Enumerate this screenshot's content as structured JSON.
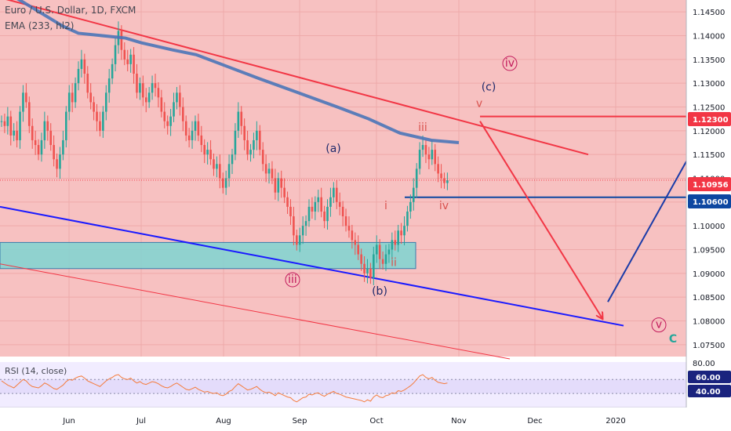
{
  "header": {
    "symbol_title": "Euro / U.S. Dollar, 1D, FXCM",
    "ema_label": "EMA (233, hl2)",
    "rsi_label": "RSI (14, close)"
  },
  "chart_data": {
    "type": "candlestick",
    "price_axis": {
      "ticks": [
        "1.14500",
        "1.14000",
        "1.13500",
        "1.13000",
        "1.12500",
        "1.12000",
        "1.11500",
        "1.11000",
        "1.10500",
        "1.10000",
        "1.09500",
        "1.09000",
        "1.08500",
        "1.08000",
        "1.07500"
      ],
      "range": [
        1.0725,
        1.1475
      ]
    },
    "time_axis": {
      "ticks": [
        "Jun",
        "Jul",
        "Aug",
        "Sep",
        "Oct",
        "Nov",
        "Dec",
        "2020"
      ]
    },
    "price_badges": [
      {
        "value": "1.12300",
        "color": "#f23645"
      },
      {
        "value": "1.10956",
        "color": "#f23645"
      },
      {
        "value": "1.10600",
        "color": "#0d47a1"
      }
    ],
    "rsi": {
      "ticks": [
        "80.00",
        "60.00",
        "40.00"
      ],
      "badges": [
        {
          "value": "60.00"
        },
        {
          "value": "40.00"
        }
      ]
    },
    "closes": [
      1.122,
      1.121,
      1.123,
      1.119,
      1.12,
      1.118,
      1.124,
      1.128,
      1.126,
      1.121,
      1.118,
      1.117,
      1.115,
      1.118,
      1.122,
      1.12,
      1.117,
      1.114,
      1.112,
      1.115,
      1.118,
      1.124,
      1.128,
      1.126,
      1.13,
      1.133,
      1.135,
      1.132,
      1.128,
      1.126,
      1.124,
      1.122,
      1.12,
      1.124,
      1.128,
      1.131,
      1.134,
      1.138,
      1.141,
      1.137,
      1.135,
      1.134,
      1.136,
      1.132,
      1.128,
      1.13,
      1.127,
      1.126,
      1.128,
      1.13,
      1.129,
      1.127,
      1.124,
      1.122,
      1.121,
      1.123,
      1.126,
      1.128,
      1.125,
      1.122,
      1.119,
      1.118,
      1.12,
      1.122,
      1.119,
      1.117,
      1.115,
      1.116,
      1.114,
      1.112,
      1.113,
      1.11,
      1.108,
      1.11,
      1.113,
      1.115,
      1.12,
      1.124,
      1.121,
      1.118,
      1.115,
      1.116,
      1.118,
      1.12,
      1.116,
      1.113,
      1.111,
      1.112,
      1.11,
      1.107,
      1.11,
      1.108,
      1.106,
      1.104,
      1.102,
      1.098,
      1.096,
      1.098,
      1.1,
      1.101,
      1.104,
      1.103,
      1.105,
      1.106,
      1.103,
      1.101,
      1.104,
      1.106,
      1.108,
      1.105,
      1.104,
      1.102,
      1.1,
      1.099,
      1.097,
      1.096,
      1.094,
      1.092,
      1.09,
      1.091,
      1.089,
      1.094,
      1.096,
      1.093,
      1.092,
      1.094,
      1.095,
      1.097,
      1.096,
      1.099,
      1.098,
      1.1,
      1.103,
      1.105,
      1.108,
      1.112,
      1.116,
      1.117,
      1.115,
      1.114,
      1.116,
      1.113,
      1.111,
      1.11,
      1.109,
      1.1096
    ],
    "ema_path": [
      [
        0,
        1.15
      ],
      [
        40,
        1.146
      ],
      [
        80,
        1.142
      ],
      [
        100,
        1.1405
      ],
      [
        160,
        1.1395
      ],
      [
        180,
        1.1385
      ],
      [
        220,
        1.137
      ],
      [
        250,
        1.136
      ],
      [
        290,
        1.1335
      ],
      [
        330,
        1.131
      ],
      [
        380,
        1.128
      ],
      [
        430,
        1.125
      ],
      [
        470,
        1.1225
      ],
      [
        510,
        1.1195
      ],
      [
        550,
        1.118
      ],
      [
        585,
        1.1175
      ]
    ],
    "trendlines": [
      {
        "color": "#f23645",
        "width": 2,
        "points": [
          [
            0,
            1.148
          ],
          [
            750,
            1.115
          ]
        ]
      },
      {
        "color": "#1a1aff",
        "width": 2,
        "points": [
          [
            0,
            1.104
          ],
          [
            795,
            1.079
          ]
        ]
      },
      {
        "color": "#f23645",
        "width": 1,
        "points": [
          [
            0,
            1.092
          ],
          [
            650,
            1.072
          ]
        ]
      },
      {
        "color": "#f23645",
        "width": 2,
        "points": [
          [
            612,
            1.123
          ],
          [
            875,
            1.123
          ]
        ]
      },
      {
        "color": "#0d47a1",
        "width": 2,
        "points": [
          [
            516,
            1.106
          ],
          [
            875,
            1.106
          ]
        ]
      }
    ],
    "projections": [
      {
        "color": "#f23645",
        "width": 2,
        "points": [
          [
            612,
            1.122
          ],
          [
            768,
            1.0805
          ]
        ],
        "arrow": true
      },
      {
        "color": "#1a3ba8",
        "width": 2,
        "points": [
          [
            775,
            1.084
          ],
          [
            880,
            1.115
          ]
        ],
        "arrow": false
      }
    ],
    "zone": {
      "from": 1.091,
      "to": 1.0965,
      "x_end": 530,
      "fill": "#7fd6d2",
      "stroke": "#1a6fa8"
    },
    "wave_labels": [
      {
        "text": "(a)",
        "color": "#1f2a6b",
        "x": 425,
        "y": 1.1155
      },
      {
        "text": "(b)",
        "color": "#1f2a6b",
        "x": 484,
        "y": 1.0855
      },
      {
        "text": "(c)",
        "color": "#1f2a6b",
        "x": 623,
        "y": 1.1285
      },
      {
        "text": "i",
        "color": "#d9534f",
        "x": 492,
        "y": 1.1035
      },
      {
        "text": "ii",
        "color": "#d9534f",
        "x": 502,
        "y": 1.0915
      },
      {
        "text": "iii",
        "color": "#d9534f",
        "x": 539,
        "y": 1.12
      },
      {
        "text": "iv",
        "color": "#d9534f",
        "x": 566,
        "y": 1.1035
      },
      {
        "text": "v",
        "color": "#d9534f",
        "x": 611,
        "y": 1.125
      },
      {
        "text": "iii",
        "color": "#c2185b",
        "x": 373,
        "y": 1.088,
        "circled": true
      },
      {
        "text": "iv",
        "color": "#c2185b",
        "x": 650,
        "y": 1.1335,
        "circled": true
      },
      {
        "text": "v",
        "color": "#c2185b",
        "x": 840,
        "y": 1.0785,
        "circled": true
      },
      {
        "text": "C",
        "color": "#26a69a",
        "x": 858,
        "y": 1.0755,
        "big": true
      }
    ],
    "rsi_values": [
      58,
      55,
      52,
      50,
      48,
      52,
      56,
      60,
      58,
      53,
      50,
      49,
      48,
      51,
      55,
      53,
      50,
      47,
      46,
      49,
      52,
      57,
      60,
      59,
      62,
      64,
      65,
      62,
      58,
      56,
      54,
      52,
      50,
      54,
      58,
      61,
      63,
      66,
      67,
      63,
      61,
      60,
      62,
      58,
      55,
      57,
      54,
      53,
      55,
      57,
      56,
      54,
      51,
      49,
      48,
      50,
      53,
      55,
      52,
      49,
      46,
      45,
      47,
      49,
      46,
      44,
      42,
      43,
      41,
      40,
      41,
      38,
      37,
      39,
      43,
      45,
      50,
      54,
      51,
      48,
      45,
      46,
      48,
      50,
      46,
      43,
      41,
      42,
      40,
      37,
      41,
      39,
      37,
      35,
      34,
      30,
      28,
      31,
      34,
      35,
      39,
      38,
      40,
      41,
      38,
      36,
      39,
      41,
      43,
      40,
      39,
      37,
      35,
      34,
      33,
      32,
      31,
      30,
      28,
      31,
      29,
      35,
      38,
      35,
      34,
      37,
      38,
      41,
      40,
      44,
      43,
      45,
      48,
      51,
      55,
      60,
      65,
      67,
      63,
      61,
      63,
      59,
      56,
      55,
      54,
      55
    ]
  }
}
